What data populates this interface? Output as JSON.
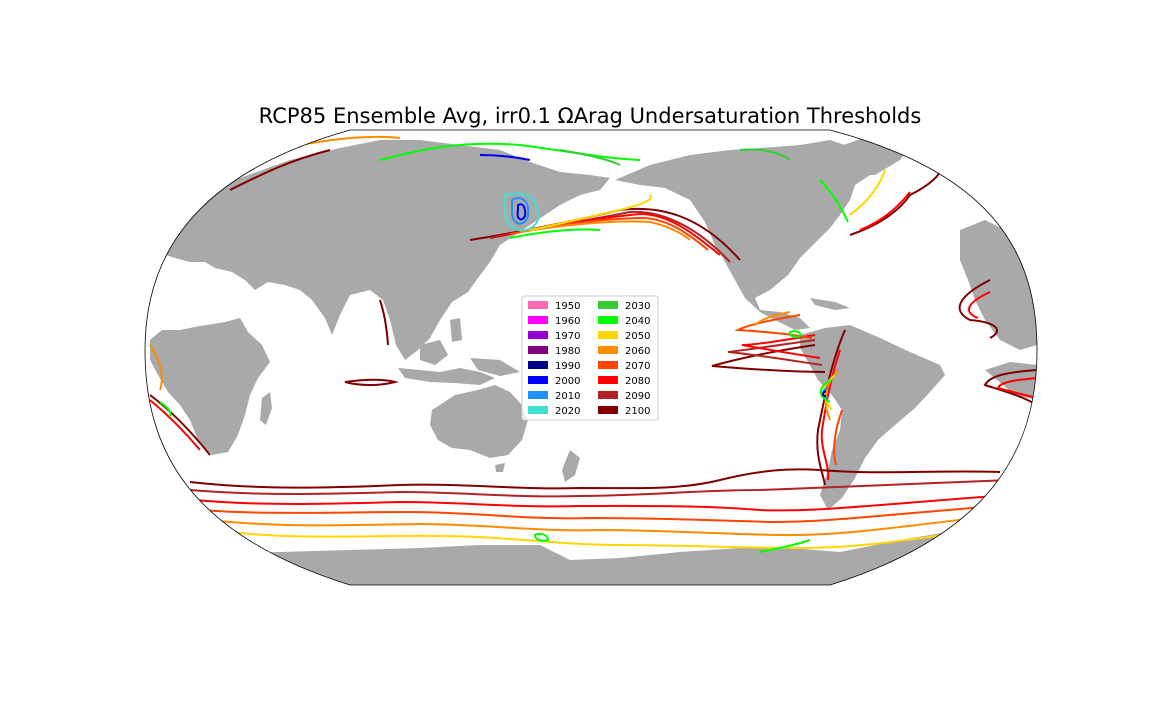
{
  "title": "RCP85 Ensemble Avg, irr0.1 ΩArag Undersaturation Thresholds",
  "projection": "robinson",
  "colors": {
    "land": "#a9a9a9",
    "ocean": "#ffffff",
    "outline": "#000000"
  },
  "legend": {
    "placement": "center",
    "entries": [
      {
        "label": "1950",
        "color": "#ff69b4"
      },
      {
        "label": "1960",
        "color": "#ff00ff"
      },
      {
        "label": "1970",
        "color": "#9400d3"
      },
      {
        "label": "1980",
        "color": "#800080"
      },
      {
        "label": "1990",
        "color": "#00008b"
      },
      {
        "label": "2000",
        "color": "#0000ff"
      },
      {
        "label": "2010",
        "color": "#1e90ff"
      },
      {
        "label": "2020",
        "color": "#40e0d0"
      },
      {
        "label": "2030",
        "color": "#32cd32"
      },
      {
        "label": "2040",
        "color": "#00ff00"
      },
      {
        "label": "2050",
        "color": "#ffd700"
      },
      {
        "label": "2060",
        "color": "#ff8c00"
      },
      {
        "label": "2070",
        "color": "#ff4500"
      },
      {
        "label": "2080",
        "color": "#ff0000"
      },
      {
        "label": "2090",
        "color": "#b22222"
      },
      {
        "label": "2100",
        "color": "#800000"
      }
    ]
  }
}
